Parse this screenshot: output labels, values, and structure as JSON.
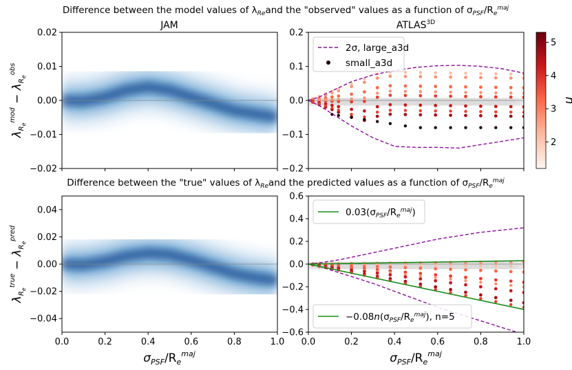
{
  "suptitle_top": "Difference between the model values of λ",
  "suptitle_top_sub": "Re",
  "suptitle_top_rest": "and the \"observed\" values as a function of σ",
  "suptitle_bottom": "Difference between the \"true\" values of λ",
  "suptitle_bottom_rest": "and the predicted values as a function of σ",
  "sigma_sub": "PSF",
  "over": "/R",
  "re_sub": "e",
  "maj_sup": "maj",
  "colors": {
    "blue": "#1f5fa8",
    "purple": "#8b0a9e",
    "green": "#1a8a1a",
    "reds_dark": "#67000d",
    "reds_light": "#fee0d2"
  },
  "chart_data": [
    {
      "id": "top-left",
      "type": "heatmap",
      "title": "JAM",
      "ylabel": "λ_Re^mod − λ_Re^obs",
      "xlim": [
        0,
        1
      ],
      "ylim": [
        -0.02,
        0.02
      ],
      "yticks": [
        "0.02",
        "0.01",
        "0.00",
        "−0.01",
        "−0.02"
      ],
      "ytick_values": [
        0.02,
        0.01,
        0.0,
        -0.01,
        -0.02
      ],
      "ridge": {
        "x": [
          0.0,
          0.1,
          0.2,
          0.3,
          0.4,
          0.5,
          0.6,
          0.7,
          0.8,
          0.9,
          1.0
        ],
        "y": [
          0.0,
          -0.0002,
          0.001,
          0.003,
          0.004,
          0.003,
          0.001,
          -0.001,
          -0.003,
          -0.004,
          -0.005
        ]
      }
    },
    {
      "id": "top-right",
      "type": "scatter",
      "title": "ATLAS",
      "title_sup": "3D",
      "xlim": [
        0,
        1
      ],
      "ylim": [
        -0.2,
        0.2
      ],
      "yticks": [
        "0.2",
        "0.1",
        "0.0",
        "−0.1",
        "−0.2"
      ],
      "ytick_values": [
        0.2,
        0.1,
        0.0,
        -0.1,
        -0.2
      ],
      "legend": [
        "2σ, large_a3d",
        "small_a3d"
      ],
      "upper_2sigma": {
        "x": [
          0.0,
          0.05,
          0.1,
          0.15,
          0.2,
          0.3,
          0.4,
          0.5,
          0.6,
          0.7,
          0.8,
          0.9,
          1.0
        ],
        "y": [
          0.0,
          0.01,
          0.025,
          0.04,
          0.055,
          0.075,
          0.088,
          0.097,
          0.102,
          0.103,
          0.1,
          0.093,
          0.08
        ]
      },
      "lower_2sigma": {
        "x": [
          0.0,
          0.05,
          0.1,
          0.15,
          0.2,
          0.3,
          0.4,
          0.5,
          0.6,
          0.7,
          0.8,
          0.9,
          1.0
        ],
        "y": [
          0.0,
          -0.015,
          -0.035,
          -0.055,
          -0.075,
          -0.11,
          -0.135,
          -0.138,
          -0.138,
          -0.14,
          -0.13,
          -0.12,
          -0.11
        ]
      },
      "colorbar": {
        "label": "n",
        "min": 1.2,
        "max": 5.3,
        "ticks": [
          "5",
          "4",
          "3",
          "2"
        ],
        "tick_values": [
          5,
          4,
          3,
          2
        ]
      }
    },
    {
      "id": "bottom-left",
      "type": "heatmap",
      "ylabel": "λ_Re^true − λ_Re^pred",
      "xlim": [
        0,
        1
      ],
      "ylim": [
        -0.05,
        0.05
      ],
      "xticks": [
        "0.0",
        "0.2",
        "0.4",
        "0.6",
        "0.8",
        "1.0"
      ],
      "xtick_values": [
        0,
        0.2,
        0.4,
        0.6,
        0.8,
        1.0
      ],
      "yticks": [
        "0.04",
        "0.02",
        "0.00",
        "−0.02",
        "−0.04"
      ],
      "ytick_values": [
        0.04,
        0.02,
        0.0,
        -0.02,
        -0.04
      ],
      "xlabel": "σ_PSF/R_e^maj",
      "ridge": {
        "x": [
          0.0,
          0.1,
          0.2,
          0.3,
          0.4,
          0.5,
          0.6,
          0.7,
          0.8,
          0.9,
          1.0
        ],
        "y": [
          0.0,
          -0.0005,
          0.002,
          0.006,
          0.008,
          0.007,
          0.003,
          -0.002,
          -0.007,
          -0.01,
          -0.012
        ]
      }
    },
    {
      "id": "bottom-right",
      "type": "scatter",
      "xlim": [
        0,
        1
      ],
      "ylim": [
        -0.6,
        0.6
      ],
      "xticks": [
        "0.0",
        "0.2",
        "0.4",
        "0.6",
        "0.8",
        "1.0"
      ],
      "xtick_values": [
        0,
        0.2,
        0.4,
        0.6,
        0.8,
        1.0
      ],
      "yticks": [
        "0.6",
        "0.4",
        "0.2",
        "0.0",
        "−0.2",
        "−0.4",
        "−0.6"
      ],
      "ytick_values": [
        0.6,
        0.4,
        0.2,
        0.0,
        -0.2,
        -0.4,
        -0.6
      ],
      "xlabel": "σ_PSF/R_e^maj",
      "legend": [
        "0.03(σPSF/Re^maj)",
        "−0.08n(σPSF/Re^maj), n=5"
      ],
      "legend_parts": {
        "l1_a": "0.03(σ",
        "l1_b": ")",
        "l2_a": "−0.08",
        "l2_n": "n",
        "l2_b": "(σ",
        "l2_c": "), n=5"
      },
      "line_upper_slope": 0.03,
      "line_lower_slope": -0.4,
      "upper_2sigma": {
        "x": [
          0.0,
          0.05,
          0.1,
          0.15,
          0.2,
          0.3,
          0.4,
          0.5,
          0.6,
          0.7,
          0.8,
          0.9,
          1.0
        ],
        "y": [
          0.0,
          0.01,
          0.025,
          0.04,
          0.06,
          0.1,
          0.14,
          0.18,
          0.22,
          0.25,
          0.28,
          0.3,
          0.32
        ]
      },
      "lower_2sigma": {
        "x": [
          0.0,
          0.05,
          0.1,
          0.15,
          0.2,
          0.3,
          0.4,
          0.5,
          0.6,
          0.7,
          0.8,
          0.9,
          1.0
        ],
        "y": [
          0.0,
          -0.02,
          -0.05,
          -0.08,
          -0.11,
          -0.17,
          -0.24,
          -0.31,
          -0.38,
          -0.44,
          -0.5,
          -0.56,
          -0.62
        ]
      }
    }
  ]
}
